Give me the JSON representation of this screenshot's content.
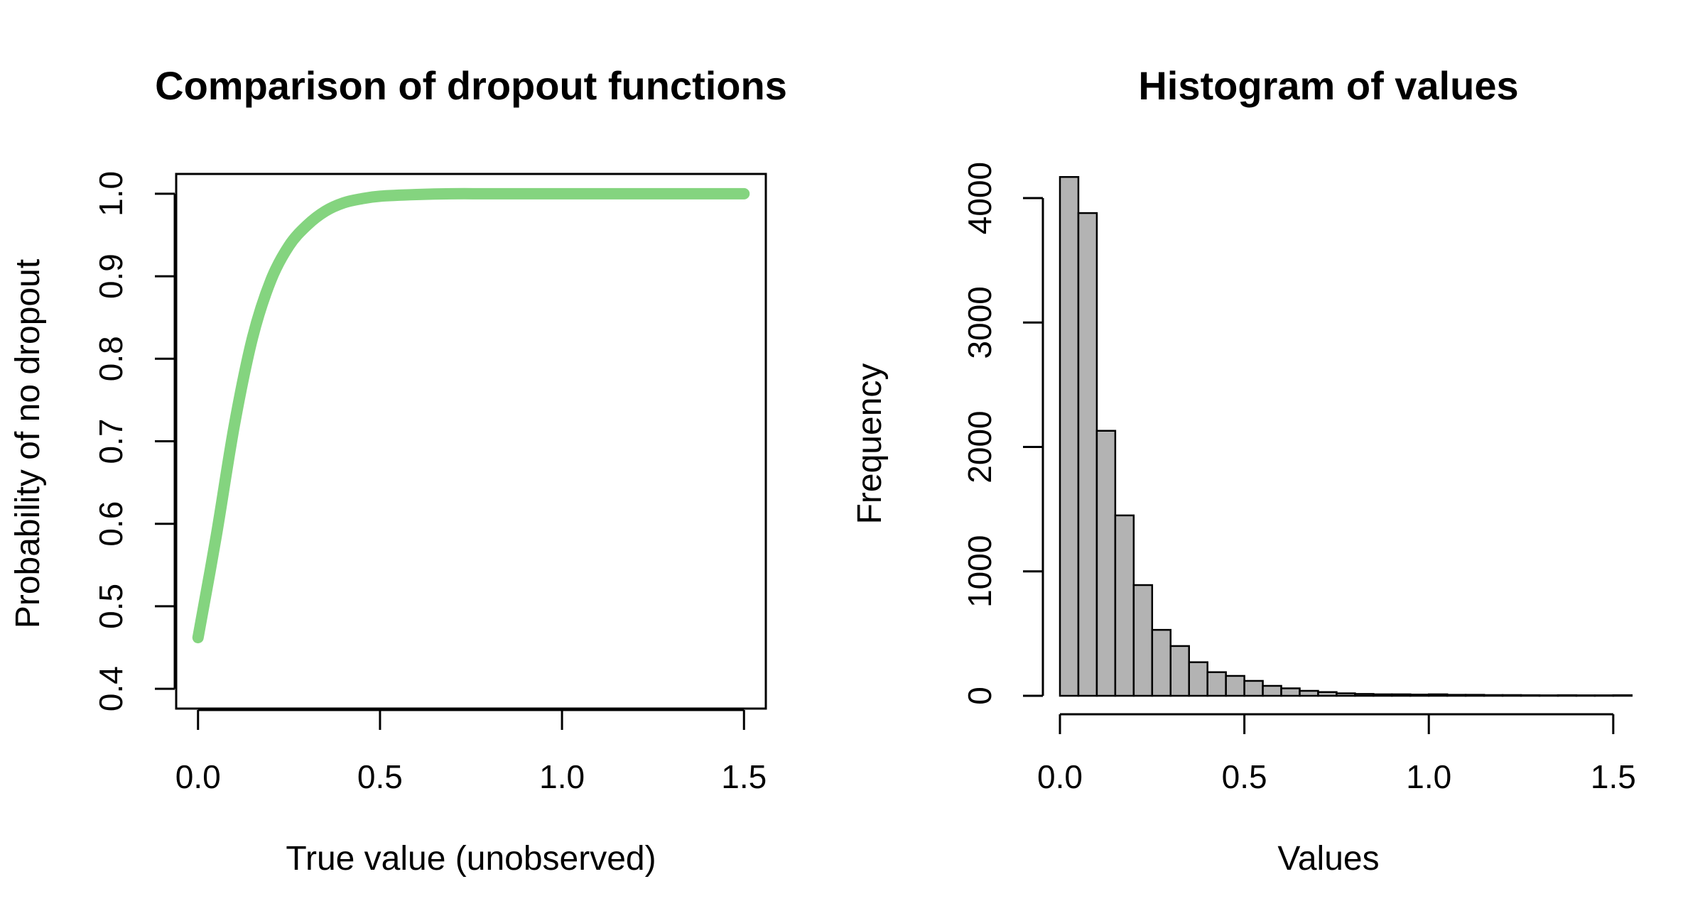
{
  "chart_data": [
    {
      "type": "line",
      "title": "Comparison of dropout functions",
      "xlabel": "True value (unobserved)",
      "ylabel": "Probability of no dropout",
      "xlim": [
        -0.06,
        1.56
      ],
      "ylim": [
        0.376,
        1.024
      ],
      "xticks": [
        0.0,
        0.5,
        1.0,
        1.5
      ],
      "xtick_labels": [
        "0.0",
        "0.5",
        "1.0",
        "1.5"
      ],
      "yticks": [
        0.4,
        0.5,
        0.6,
        0.7,
        0.8,
        0.9,
        1.0
      ],
      "ytick_labels": [
        "0.4",
        "0.5",
        "0.6",
        "0.7",
        "0.8",
        "0.9",
        "1.0"
      ],
      "grid": false,
      "series": [
        {
          "color": "#84d47f",
          "x": [
            0.0,
            0.05,
            0.1,
            0.15,
            0.2,
            0.25,
            0.3,
            0.35,
            0.4,
            0.45,
            0.5,
            0.6,
            0.7,
            0.8,
            1.0,
            1.2,
            1.5
          ],
          "y": [
            0.462,
            0.585,
            0.72,
            0.826,
            0.895,
            0.937,
            0.962,
            0.979,
            0.989,
            0.994,
            0.997,
            0.999,
            1.0,
            1.0,
            1.0,
            1.0,
            1.0
          ]
        }
      ]
    },
    {
      "type": "bar",
      "title": "Histogram of values",
      "xlabel": "Values",
      "ylabel": "Frequency",
      "xlim": [
        0.0,
        1.56
      ],
      "ylim": [
        0,
        4200
      ],
      "xticks": [
        0.0,
        0.5,
        1.0,
        1.5
      ],
      "xtick_labels": [
        "0.0",
        "0.5",
        "1.0",
        "1.5"
      ],
      "yticks": [
        0,
        1000,
        2000,
        3000,
        4000
      ],
      "ytick_labels": [
        "0",
        "1000",
        "2000",
        "3000",
        "4000"
      ],
      "grid": false,
      "bar_color": "#b3b3b3",
      "bin_width": 0.05,
      "bin_starts": [
        0.0,
        0.05,
        0.1,
        0.15,
        0.2,
        0.25,
        0.3,
        0.35,
        0.4,
        0.45,
        0.5,
        0.55,
        0.6,
        0.65,
        0.7,
        0.75,
        0.8,
        0.85,
        0.9,
        0.95,
        1.0,
        1.05,
        1.1,
        1.15,
        1.2,
        1.25,
        1.3,
        1.35,
        1.4,
        1.45,
        1.5
      ],
      "values": [
        4170,
        3880,
        2130,
        1450,
        890,
        530,
        400,
        270,
        190,
        160,
        120,
        80,
        60,
        40,
        30,
        20,
        15,
        12,
        12,
        10,
        12,
        8,
        8,
        6,
        6,
        5,
        4,
        5,
        4,
        4,
        5
      ]
    }
  ]
}
